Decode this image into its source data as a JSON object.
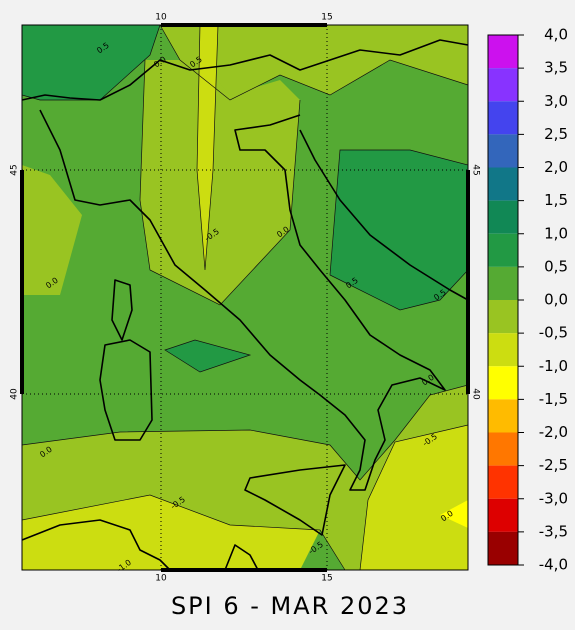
{
  "title": "SPI 6 - MAR 2023",
  "map": {
    "x_ticks": [
      {
        "value": 10,
        "label": "10"
      },
      {
        "value": 15,
        "label": "15"
      }
    ],
    "y_ticks": [
      {
        "value": 45,
        "label": "45"
      },
      {
        "value": 40,
        "label": "40"
      }
    ],
    "contour_labels": [
      "0.5",
      "0.5",
      "0.0",
      "-0.5",
      "0.0",
      "0.0",
      "0.5",
      "0.5",
      "0.0",
      "-0.5",
      "0.0",
      "-0.5",
      "-0.5",
      "0.0",
      "-1.0"
    ]
  },
  "colorbar": {
    "levels": [
      {
        "value": 4,
        "label": "4,0"
      },
      {
        "value": 3.5,
        "label": "3,5"
      },
      {
        "value": 3,
        "label": "3,0"
      },
      {
        "value": 2.5,
        "label": "2,5"
      },
      {
        "value": 2,
        "label": "2,0"
      },
      {
        "value": 1.5,
        "label": "1,5"
      },
      {
        "value": 1,
        "label": "1,0"
      },
      {
        "value": 0.5,
        "label": "0,5"
      },
      {
        "value": 0,
        "label": "0,0"
      },
      {
        "value": -0.5,
        "label": "-0,5"
      },
      {
        "value": -1,
        "label": "-1,0"
      },
      {
        "value": -1.5,
        "label": "-1,5"
      },
      {
        "value": -2,
        "label": "-2,0"
      },
      {
        "value": -2.5,
        "label": "-2,5"
      },
      {
        "value": -3,
        "label": "-3,0"
      },
      {
        "value": -3.5,
        "label": "-3,5"
      },
      {
        "value": -4,
        "label": "-4,0"
      }
    ],
    "colors": [
      "#cc11ee",
      "#8833ff",
      "#4444ee",
      "#3366bb",
      "#117788",
      "#118855",
      "#229944",
      "#55aa33",
      "#99c422",
      "#ccdd11",
      "#ffff00",
      "#ffbb00",
      "#ff7700",
      "#ff3300",
      "#dd0000",
      "#990000"
    ]
  }
}
